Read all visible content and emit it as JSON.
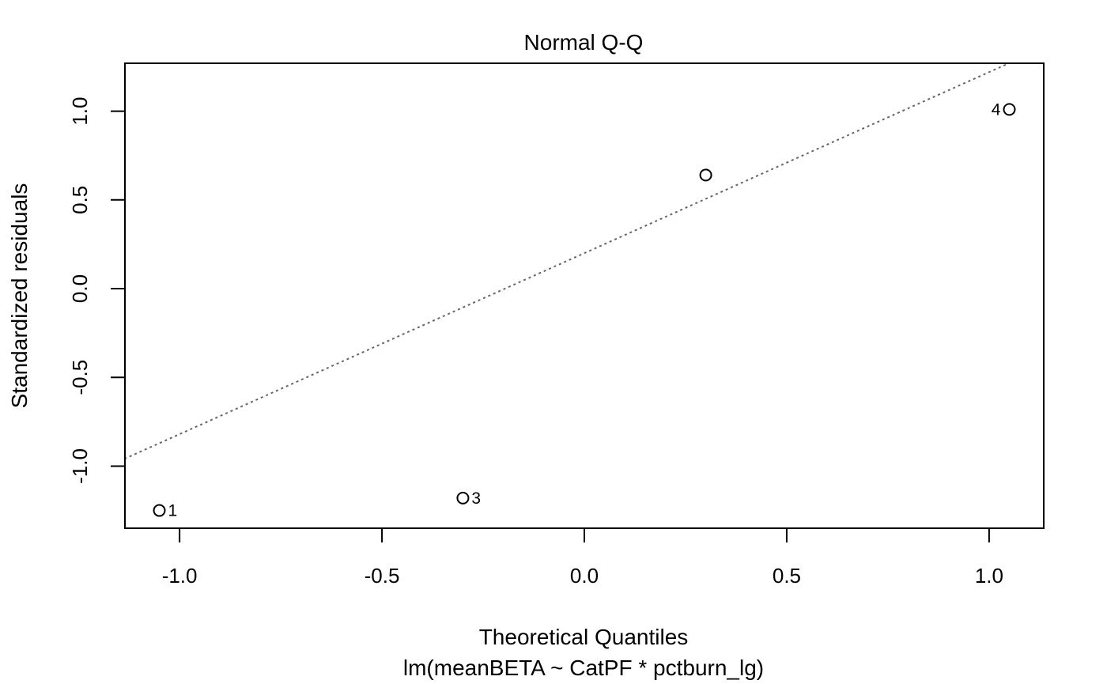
{
  "chart_data": {
    "type": "scatter",
    "title": "Normal Q-Q",
    "subtitle": "lm(meanBETA ~ CatPF * pctburn_lg)",
    "xlabel": "Theoretical Quantiles",
    "ylabel": "Standardized residuals",
    "xlim": [
      -1.135,
      1.135
    ],
    "ylim": [
      -1.35,
      1.27
    ],
    "x_ticks": [
      -1.0,
      -0.5,
      0.0,
      0.5,
      1.0
    ],
    "x_tick_labels": [
      "-1.0",
      "-0.5",
      "0.0",
      "0.5",
      "1.0"
    ],
    "y_ticks": [
      -1.0,
      -0.5,
      0.0,
      0.5,
      1.0
    ],
    "y_tick_labels": [
      "-1.0",
      "-0.5",
      "0.0",
      "0.5",
      "1.0"
    ],
    "points": [
      {
        "x": -1.05,
        "y": -1.25,
        "label": "1"
      },
      {
        "x": -0.3,
        "y": -1.18,
        "label": "3"
      },
      {
        "x": 0.3,
        "y": 0.64,
        "label": ""
      },
      {
        "x": 1.05,
        "y": 1.01,
        "label": "4"
      }
    ],
    "reference_line": {
      "intercept": 0.2,
      "slope": 1.02,
      "style": "dotted",
      "color": "#666666"
    },
    "grid": false,
    "legend": "none"
  }
}
